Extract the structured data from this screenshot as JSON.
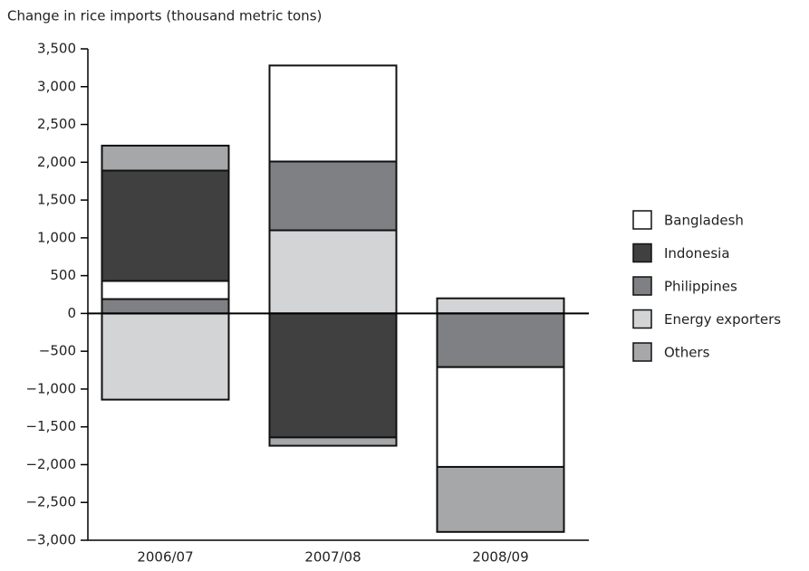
{
  "chart_data": {
    "type": "stacked-bar",
    "title": "Change in rice imports (thousand metric tons)",
    "categories": [
      "2006/07",
      "2007/08",
      "2008/09"
    ],
    "series": [
      {
        "name": "Bangladesh",
        "color": "#ffffff",
        "values": [
          240,
          1270,
          -1320
        ]
      },
      {
        "name": "Indonesia",
        "color": "#404040",
        "values": [
          1460,
          -1640,
          0
        ]
      },
      {
        "name": "Philippines",
        "color": "#7f8083",
        "values": [
          190,
          910,
          -710
        ]
      },
      {
        "name": "Energy exporters",
        "color": "#d3d4d6",
        "values": [
          -1140,
          1100,
          200
        ]
      },
      {
        "name": "Others",
        "color": "#a6a7a9",
        "values": [
          330,
          -110,
          -860
        ]
      }
    ],
    "ylim": [
      -3000,
      3500
    ],
    "yticks": [
      {
        "value": -3000,
        "label": "−3,000"
      },
      {
        "value": -2500,
        "label": "−2,500"
      },
      {
        "value": -2000,
        "label": "−2,000"
      },
      {
        "value": -1500,
        "label": "−1,500"
      },
      {
        "value": -1000,
        "label": "−1,000"
      },
      {
        "value": -500,
        "label": "−500"
      },
      0,
      500,
      {
        "value": 1000,
        "label": "1,000"
      },
      {
        "value": 1500,
        "label": "1,500"
      },
      {
        "value": 2000,
        "label": "2,000"
      },
      {
        "value": 2500,
        "label": "2,500"
      },
      {
        "value": 3000,
        "label": "3,000"
      },
      {
        "value": 3500,
        "label": "3,500"
      }
    ],
    "legend": "right"
  }
}
